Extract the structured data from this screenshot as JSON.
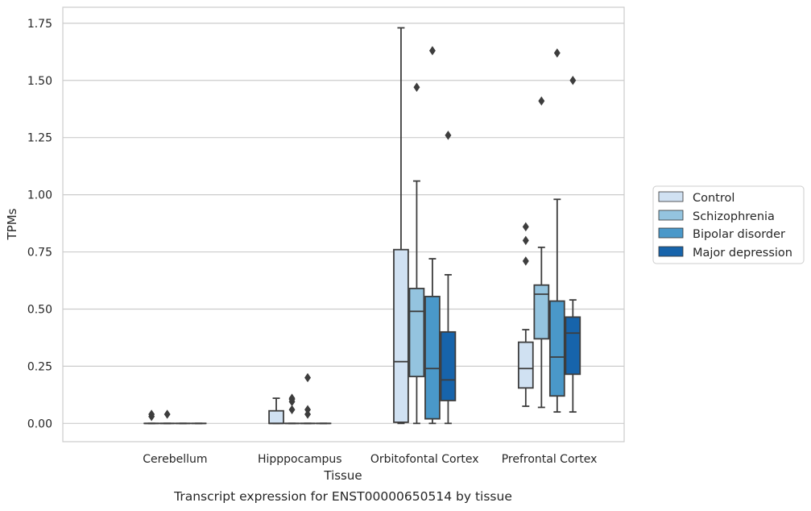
{
  "caption": "Transcript expression for ENST00000650514 by tissue",
  "chart_data": {
    "type": "boxplot",
    "xlabel": "Tissue",
    "ylabel": "TPMs",
    "ylim": [
      -0.08,
      1.82
    ],
    "yticks": [
      "0.00",
      "0.25",
      "0.50",
      "0.75",
      "1.00",
      "1.25",
      "1.50",
      "1.75"
    ],
    "grid": "horizontal",
    "legend_placement": "right",
    "categories": [
      "Cerebellum",
      "Hipppocampus",
      "Orbitofontal Cortex",
      "Prefrontal Cortex"
    ],
    "series": [
      {
        "name": "Control",
        "color": "#d0e1f2",
        "boxes": [
          {
            "q1": 0,
            "median": 0,
            "q3": 0,
            "whisker_low": 0,
            "whisker_high": 0,
            "outliers": [
              0.03,
              0.04
            ]
          },
          {
            "q1": 0,
            "median": 0,
            "q3": 0.055,
            "whisker_low": 0,
            "whisker_high": 0.11,
            "outliers": []
          },
          {
            "q1": 0.005,
            "median": 0.27,
            "q3": 0.76,
            "whisker_low": 0,
            "whisker_high": 1.73,
            "outliers": []
          },
          {
            "q1": 0.155,
            "median": 0.24,
            "q3": 0.355,
            "whisker_low": 0.075,
            "whisker_high": 0.41,
            "outliers": [
              0.71,
              0.8,
              0.86
            ]
          }
        ]
      },
      {
        "name": "Schizophrenia",
        "color": "#94c4df",
        "boxes": [
          {
            "q1": 0,
            "median": 0,
            "q3": 0,
            "whisker_low": 0,
            "whisker_high": 0,
            "outliers": [
              0.04
            ]
          },
          {
            "q1": 0,
            "median": 0,
            "q3": 0,
            "whisker_low": 0,
            "whisker_high": 0,
            "outliers": [
              0.06,
              0.095,
              0.105,
              0.11
            ]
          },
          {
            "q1": 0.205,
            "median": 0.49,
            "q3": 0.59,
            "whisker_low": 0,
            "whisker_high": 1.06,
            "outliers": [
              1.47
            ]
          },
          {
            "q1": 0.37,
            "median": 0.565,
            "q3": 0.605,
            "whisker_low": 0.07,
            "whisker_high": 0.77,
            "outliers": [
              1.41
            ]
          }
        ]
      },
      {
        "name": "Bipolar disorder",
        "color": "#4a98c9",
        "boxes": [
          {
            "q1": 0,
            "median": 0,
            "q3": 0,
            "whisker_low": 0,
            "whisker_high": 0,
            "outliers": []
          },
          {
            "q1": 0,
            "median": 0,
            "q3": 0,
            "whisker_low": 0,
            "whisker_high": 0,
            "outliers": [
              0.04,
              0.06,
              0.2
            ]
          },
          {
            "q1": 0.02,
            "median": 0.24,
            "q3": 0.555,
            "whisker_low": 0,
            "whisker_high": 0.72,
            "outliers": [
              1.63
            ]
          },
          {
            "q1": 0.12,
            "median": 0.29,
            "q3": 0.535,
            "whisker_low": 0.05,
            "whisker_high": 0.98,
            "outliers": [
              1.62
            ]
          }
        ]
      },
      {
        "name": "Major depression",
        "color": "#1764ab",
        "boxes": [
          {
            "q1": 0,
            "median": 0,
            "q3": 0,
            "whisker_low": 0,
            "whisker_high": 0,
            "outliers": []
          },
          {
            "q1": 0,
            "median": 0,
            "q3": 0,
            "whisker_low": 0,
            "whisker_high": 0,
            "outliers": []
          },
          {
            "q1": 0.1,
            "median": 0.19,
            "q3": 0.4,
            "whisker_low": 0,
            "whisker_high": 0.65,
            "outliers": [
              1.26
            ]
          },
          {
            "q1": 0.215,
            "median": 0.395,
            "q3": 0.465,
            "whisker_low": 0.05,
            "whisker_high": 0.54,
            "outliers": [
              1.5
            ]
          }
        ]
      }
    ]
  }
}
